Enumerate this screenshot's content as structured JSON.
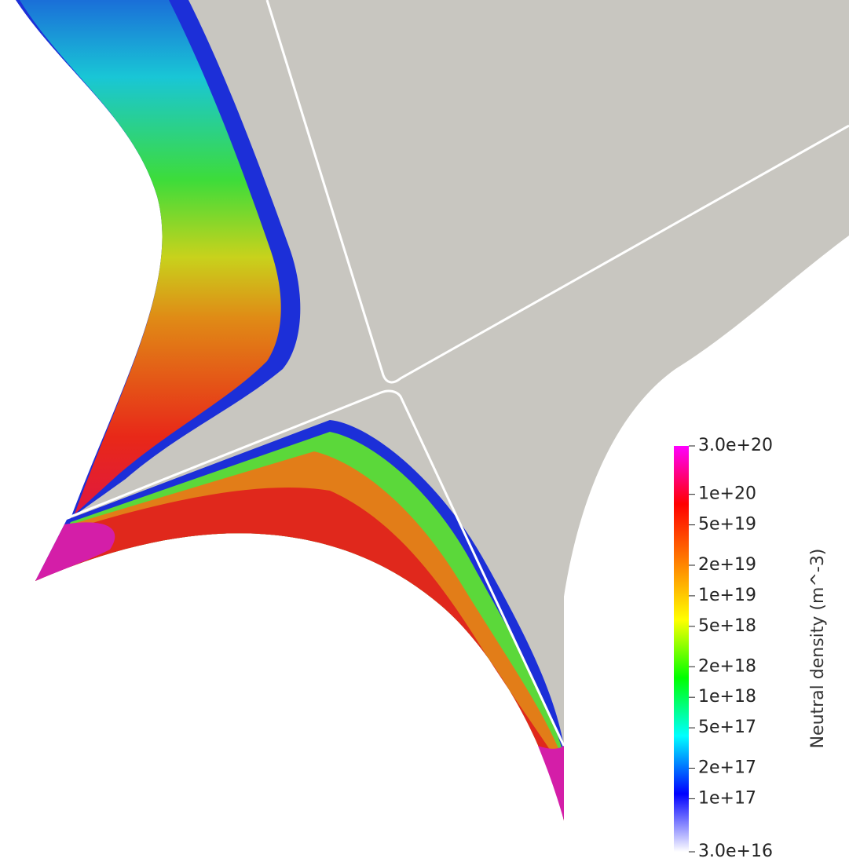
{
  "colorbar": {
    "title": "Neutral density (m^-3)",
    "log_scale": true,
    "lim": [
      3e+20,
      3e+16
    ],
    "colors": [
      "#ff00ff",
      "#ff0000",
      "#ff7f00",
      "#ffff00",
      "#00ff00",
      "#00ffff",
      "#0000ff",
      "#ffffff"
    ],
    "ticks": [
      {
        "value": 3e+20,
        "label": "3.0e+20"
      },
      {
        "value": 1e+20,
        "label": "1e+20"
      },
      {
        "value": 5e+19,
        "label": "5e+19"
      },
      {
        "value": 2e+19,
        "label": "2e+19"
      },
      {
        "value": 1e+19,
        "label": "1e+19"
      },
      {
        "value": 5e+18,
        "label": "5e+18"
      },
      {
        "value": 2e+18,
        "label": "2e+18"
      },
      {
        "value": 1e+18,
        "label": "1e+18"
      },
      {
        "value": 5e+17,
        "label": "5e+17"
      },
      {
        "value": 2e+17,
        "label": "2e+17"
      },
      {
        "value": 1e+17,
        "label": "1e+17"
      },
      {
        "value": 3e+16,
        "label": "3.0e+16"
      }
    ]
  }
}
